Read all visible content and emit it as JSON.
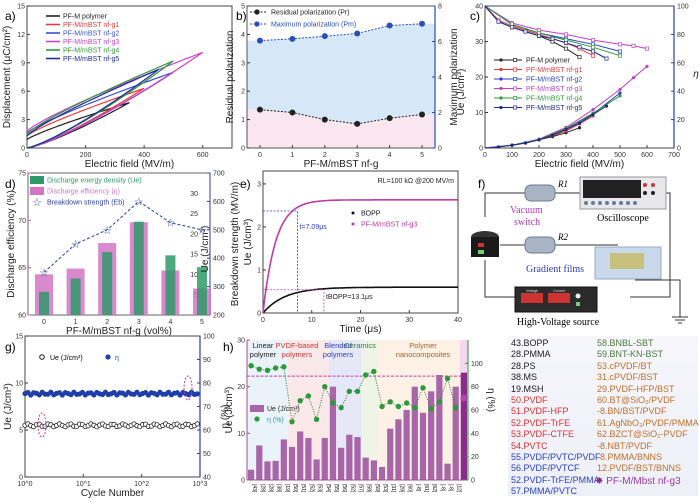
{
  "figure": {
    "panels": [
      "a)",
      "b)",
      "c)",
      "d)",
      "e)",
      "f)",
      "g)",
      "h)"
    ]
  },
  "chart_data": [
    {
      "id": "a",
      "type": "line",
      "title": "",
      "xlabel": "Electric field (MV/m)",
      "ylabel": "Displacement (μC/cm²)",
      "xlim": [
        0,
        700
      ],
      "ylim": [
        0,
        15
      ],
      "xticks": [
        0,
        200,
        400,
        600
      ],
      "yticks": [
        0,
        3,
        6,
        9,
        12,
        15
      ],
      "legend_position": "top-left",
      "series": [
        {
          "name": "PF-M polymer",
          "color": "#222222",
          "Emax": 350,
          "Dmax": 4.8,
          "Dr": 0.9,
          "Dup": 3.9
        },
        {
          "name": "PF-M/mBST nf-g1",
          "color": "#e8393b",
          "Emax": 400,
          "Dmax": 6.3,
          "Dr": 1.3,
          "Dup": 5.2
        },
        {
          "name": "PF-M/mBST nf-g2",
          "color": "#3d4fd0",
          "Emax": 500,
          "Dmax": 8.0,
          "Dr": 1.6,
          "Dup": 7.0
        },
        {
          "name": "PF-M/mBST nf-g3",
          "color": "#d13fd1",
          "Emax": 600,
          "Dmax": 10.1,
          "Dr": 1.8,
          "Dup": 8.8
        },
        {
          "name": "PF-M/mBST nf-g4",
          "color": "#2f9a38",
          "Emax": 500,
          "Dmax": 9.2,
          "Dr": 1.5,
          "Dup": 8.0
        },
        {
          "name": "PF-M/mBST nf-g5",
          "color": "#1e2aa0",
          "Emax": 450,
          "Dmax": 8.3,
          "Dr": 1.3,
          "Dup": 7.4
        }
      ]
    },
    {
      "id": "b",
      "type": "line",
      "xlabel": "PF-M/mBST nf-g",
      "ylabel": "Residual polarization",
      "ylabel_right": "Maximum polarization",
      "x": [
        0,
        1,
        2,
        3,
        4,
        5
      ],
      "xlim": [
        -0.4,
        5.4
      ],
      "ylim": [
        0,
        5
      ],
      "ylim_right": [
        0,
        8
      ],
      "yticks": [
        0,
        1,
        2,
        3,
        4,
        5
      ],
      "yticks_right": [
        0,
        2,
        4,
        6,
        8
      ],
      "series": [
        {
          "name": "Residual polarization (Pr)",
          "axis": "left",
          "color": "#222222",
          "values": [
            1.35,
            1.25,
            1.0,
            0.85,
            1.05,
            1.18
          ]
        },
        {
          "name": "Maximum polarization (Pm)",
          "axis": "right",
          "color": "#2a4fb8",
          "values": [
            6.05,
            6.15,
            6.3,
            6.45,
            6.9,
            7.0
          ]
        }
      ],
      "legend_position": "top-left"
    },
    {
      "id": "c",
      "type": "line",
      "xlabel": "Electric field (MV/m)",
      "ylabel": "Ue (J/cm³)",
      "ylabel_right": "η",
      "xlim": [
        0,
        700
      ],
      "ylim": [
        0,
        40
      ],
      "ylim_right": [
        0,
        100
      ],
      "xticks": [
        0,
        100,
        200,
        300,
        400,
        500,
        600,
        700
      ],
      "yticks": [
        0,
        10,
        20,
        30,
        40
      ],
      "yticks_right": [
        0,
        20,
        40,
        60,
        80,
        100
      ],
      "legend_position": "center-left",
      "series": [
        {
          "name": "PF-M polymer",
          "color": "#222222",
          "x": [
            0,
            50,
            100,
            150,
            200,
            250,
            300,
            350
          ],
          "Ue": [
            0,
            0.3,
            0.8,
            1.4,
            2.3,
            3.2,
            4.3,
            5.7
          ],
          "eta": [
            100,
            89,
            85,
            82,
            79,
            75,
            70,
            64
          ]
        },
        {
          "name": "PF-M/mBST nf-g1",
          "color": "#e8393b",
          "x": [
            0,
            50,
            100,
            150,
            200,
            250,
            300,
            350,
            400
          ],
          "Ue": [
            0,
            0.3,
            0.8,
            1.4,
            2.3,
            3.5,
            4.8,
            6.8,
            9.0
          ],
          "eta": [
            100,
            90,
            86,
            83,
            80,
            77,
            74,
            70,
            65
          ]
        },
        {
          "name": "PF-M/mBST nf-g2",
          "color": "#2a3fc8",
          "x": [
            0,
            100,
            200,
            300,
            400,
            500
          ],
          "Ue": [
            0,
            0.8,
            2.4,
            5.3,
            9.6,
            15.5
          ],
          "eta": [
            100,
            87,
            81,
            77,
            73,
            68
          ]
        },
        {
          "name": "PF-M/mBST nf-g3",
          "color": "#c23fc9",
          "x": [
            0,
            100,
            200,
            300,
            400,
            500,
            550,
            600
          ],
          "Ue": [
            0,
            0.8,
            2.5,
            5.8,
            10.8,
            16.5,
            19.8,
            23.0
          ],
          "eta": [
            100,
            88,
            83,
            80,
            76,
            73,
            72,
            70
          ]
        },
        {
          "name": "PF-M/mBST nf-g4",
          "color": "#2f9a38",
          "x": [
            0,
            100,
            200,
            300,
            400,
            500
          ],
          "Ue": [
            0,
            0.8,
            2.4,
            5.5,
            9.8,
            14.7
          ],
          "eta": [
            100,
            87,
            81,
            76,
            71,
            65
          ]
        },
        {
          "name": "PF-M/mBST nf-g5",
          "color": "#1e2a8a",
          "x": [
            0,
            50,
            100,
            150,
            200,
            250,
            300,
            350,
            400,
            450
          ],
          "Ue": [
            0,
            0.3,
            0.8,
            1.4,
            2.3,
            3.6,
            5.2,
            7.0,
            9.4,
            11.8
          ],
          "eta": [
            100,
            89,
            85,
            82,
            79,
            77,
            74,
            71,
            68,
            63
          ]
        }
      ]
    },
    {
      "id": "d",
      "type": "bar",
      "xlabel": "PF-M/mBST nf-g (vol%)",
      "ylabel": "Discharge efficiency (%)",
      "ylabel_right1": "Ue (J/cm³)",
      "ylabel_right2": "Breakdown strength (MV/m)",
      "categories": [
        "0",
        "1",
        "2",
        "3",
        "4",
        "5"
      ],
      "ylim": [
        60,
        75
      ],
      "ylim_right1": [
        0,
        35
      ],
      "ylim_right2": [
        200,
        700
      ],
      "yticks": [
        60,
        65,
        70,
        75
      ],
      "yticks_right1": [
        5,
        10,
        15,
        20,
        25,
        30
      ],
      "yticks_right2": [
        200,
        300,
        400,
        500,
        600,
        700
      ],
      "legend_position": "top-left",
      "series": [
        {
          "name": "Discharge energy density (Ue)",
          "axis": "right1",
          "color": "#2e9a6a",
          "values": [
            5.7,
            9.0,
            15.5,
            23.0,
            14.7,
            11.8
          ]
        },
        {
          "name": "Discharge efficiency (η)",
          "axis": "left",
          "color": "#d574c6",
          "values": [
            64.3,
            64.9,
            67.6,
            69.8,
            64.7,
            62.8
          ]
        },
        {
          "name": "Breakdown strength (Eb)",
          "axis": "right2",
          "color": "#2a3fa8",
          "values": [
            350,
            450,
            500,
            600,
            525,
            500
          ]
        }
      ]
    },
    {
      "id": "e",
      "type": "line",
      "xlabel": "Time (μs)",
      "ylabel": "Ue (J/cm³)",
      "xlim": [
        0,
        40
      ],
      "ylim": [
        0,
        3.3
      ],
      "xticks": [
        0,
        10,
        20,
        30,
        40
      ],
      "yticks": [
        0,
        1,
        2,
        3
      ],
      "annotation_top": "RL=100 kΩ   @200 MV/m",
      "legend_position": "center-right",
      "series": [
        {
          "name": "BOPP",
          "color": "#111111",
          "plateau": 0.6,
          "tau": 4.5
        },
        {
          "name": "PF-M/mBST nf-g3",
          "color": "#c23aa8",
          "plateau": 2.63,
          "tau": 2.6
        }
      ],
      "annotations": [
        {
          "text": "t=7.09μs",
          "x": 7.09,
          "y": 2.37,
          "color": "#2a3fc8"
        },
        {
          "text": "tBOPP=13.1μs",
          "x": 12.5,
          "y": 0.54,
          "color": "#222222"
        }
      ]
    },
    {
      "id": "g",
      "type": "scatter",
      "xlabel": "Cycle Number",
      "ylabel": "Ue (J/cm³)",
      "ylabel_right": "η (%)",
      "xscale": "log",
      "xlim": [
        1,
        1000
      ],
      "ylim": [
        0,
        15
      ],
      "ylim_right": [
        40,
        100
      ],
      "xticks": [
        "10^0",
        "10^1",
        "10^2",
        "10^3"
      ],
      "yticks": [
        0,
        5,
        10,
        15
      ],
      "yticks_right": [
        40,
        50,
        60,
        70,
        80,
        90,
        100
      ],
      "legend_position": "top-left",
      "series": [
        {
          "name": "Ue (J/cm³)",
          "color": "#222222",
          "value_mean": 5.5
        },
        {
          "name": "η",
          "color": "#1e3fa8",
          "value_mean": 75.5
        }
      ]
    },
    {
      "id": "h",
      "type": "bar",
      "ylabel": "Ue (J/cm³)",
      "ylabel_right": "η (%)",
      "ylim": [
        0,
        30
      ],
      "ylim_right": [
        0,
        120
      ],
      "yticks": [
        0,
        10,
        20,
        30
      ],
      "yticks_right": [
        0,
        20,
        40,
        60,
        80,
        100
      ],
      "groups": [
        {
          "name": "Linear polymer",
          "color": "#222222",
          "bg": "#eaf2fa"
        },
        {
          "name": "PVDF-based polymers",
          "color": "#e03030",
          "bg": "#fbe9ea"
        },
        {
          "name": "Blended polymers",
          "color": "#2a3fc0",
          "bg": "#e6e8f7"
        },
        {
          "name": "Ceramics",
          "color": "#3f7a3a",
          "bg": "#eef4e6"
        },
        {
          "name": "Polymer nanocomposites",
          "color": "#a0642a",
          "bg": "#fcf1e4"
        }
      ],
      "categories": [
        "[43]",
        "[28]",
        "[28]",
        "[38]",
        "[19]",
        "[50]",
        "[51]",
        "[52]",
        "[53]",
        "[54]",
        "[55]",
        "[56]",
        "[52]",
        "[57]",
        "[58]",
        "[59]",
        "[53]",
        "[31]",
        "[29]",
        "[60]",
        "[-8]",
        "[61]",
        "[62]",
        "[-8]",
        "[-8]",
        "[12]"
      ],
      "group_index": [
        0,
        0,
        0,
        0,
        0,
        1,
        1,
        1,
        1,
        1,
        2,
        2,
        2,
        2,
        3,
        3,
        4,
        4,
        4,
        4,
        4,
        4,
        4,
        4,
        4,
        4
      ],
      "series": [
        {
          "name": "Ue (J/cm³)",
          "axis": "left",
          "color": "#a866a8",
          "values": [
            2.2,
            7.4,
            4.0,
            4.1,
            8.7,
            7.1,
            10.4,
            9.0,
            4.4,
            9.0,
            20.0,
            6.9,
            9.7,
            9.2,
            4.8,
            4.2,
            2.8,
            11.0,
            13.0,
            15.0,
            20.0,
            14.4,
            19.0,
            22.5,
            3.5,
            20.0
          ]
        },
        {
          "name": "η (%)",
          "axis": "right",
          "color": "#2a9a3a",
          "values": [
            98,
            95,
            94,
            96,
            97,
            50,
            68,
            72,
            52,
            80,
            66,
            62,
            76,
            76,
            90,
            93,
            63,
            67,
            63,
            66,
            62,
            79,
            61,
            67,
            87,
            62
          ]
        }
      ],
      "highlight": {
        "name": "PF-M/Mbst nf-g3",
        "Ue": 23.0,
        "eta": 70,
        "color": "#8a2a8a"
      },
      "reference_line_eta": 89
    }
  ],
  "circuit": {
    "resistor1": "R1",
    "resistor2": "R2",
    "oscilloscope": "Oscilloscope",
    "vacuum_switch": "Vacuum switch",
    "gradient_films": "Gradient films",
    "source": "High-Voltage source",
    "source_voltage_label": "Voltage",
    "source_current_label": "Current"
  },
  "references": {
    "col1": [
      {
        "text": "43.BOPP",
        "color": "#222222"
      },
      {
        "text": "28.PMMA",
        "color": "#222222"
      },
      {
        "text": "28.PS",
        "color": "#222222"
      },
      {
        "text": "38.MS",
        "color": "#222222"
      },
      {
        "text": "19.MSH",
        "color": "#222222"
      },
      {
        "text": "50.PVDF",
        "color": "#e03030"
      },
      {
        "text": "51.PVDF-HFP",
        "color": "#e03030"
      },
      {
        "text": "52.PVDF-TrFE",
        "color": "#e03030"
      },
      {
        "text": "53.PVDF-CTFE",
        "color": "#e03030"
      },
      {
        "text": "54.PVTC",
        "color": "#e03030"
      },
      {
        "text": "55.PVDF/PVTC/PVDF",
        "color": "#2a3fc0"
      },
      {
        "text": "56.PVDF/PVTCF",
        "color": "#2a3fc0"
      },
      {
        "text": "52.PVDF-TrFE/PMMA",
        "color": "#2a3fc0"
      },
      {
        "text": "57.PMMA/PVTC",
        "color": "#2a3fc0"
      }
    ],
    "col2": [
      {
        "text": "58.BNBL-SBT",
        "color": "#4a7a3a"
      },
      {
        "text": "59.BNT-KN-BST",
        "color": "#4a7a3a"
      },
      {
        "text": "53.cPVDF/BT",
        "color": "#c0702a"
      },
      {
        "text": "31.cPVDF/BST",
        "color": "#c0702a"
      },
      {
        "text": "29.PVDF-HFP/BST",
        "color": "#c0702a"
      },
      {
        "text": "60.BT@SiO₂/PVDF",
        "color": "#c0702a"
      },
      {
        "text": "-8.BN/BST/PVDF",
        "color": "#c0702a"
      },
      {
        "text": "61.AgNbO₃/PVDF/PMMA",
        "color": "#c0702a"
      },
      {
        "text": "62.BZCT@SiO₂-PVDF",
        "color": "#c0702a"
      },
      {
        "text": "-8.NBT/PVDF",
        "color": "#c0702a"
      },
      {
        "text": "-8.PMMA/BNNS",
        "color": "#c0702a"
      },
      {
        "text": "12.PVDF/BST/BNNS",
        "color": "#c0702a"
      }
    ],
    "highlight_label": "PF-M/Mbst nf-g3"
  }
}
